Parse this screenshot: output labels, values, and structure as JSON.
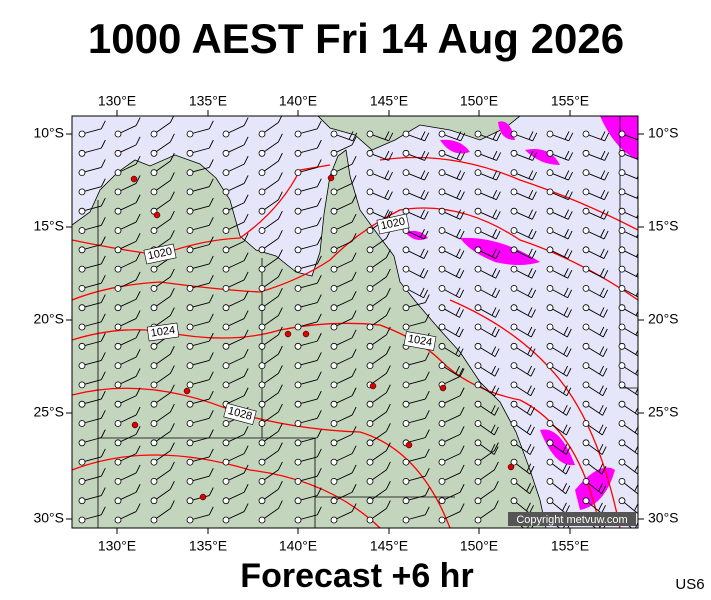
{
  "title": "1000 AEST Fri 14 Aug 2026",
  "map": {
    "lon_labels": [
      "130°E",
      "135°E",
      "140°E",
      "145°E",
      "150°E",
      "155°E"
    ],
    "lat_labels": [
      "10°S",
      "15°S",
      "20°S",
      "25°S",
      "30°S"
    ],
    "isobar_labels": [
      "1020",
      "1024",
      "1028",
      "1020",
      "1024"
    ],
    "copyright": "Copyright metvuw.com"
  },
  "footer": {
    "caption": "Forecast +6 hr",
    "code": "US6"
  }
}
